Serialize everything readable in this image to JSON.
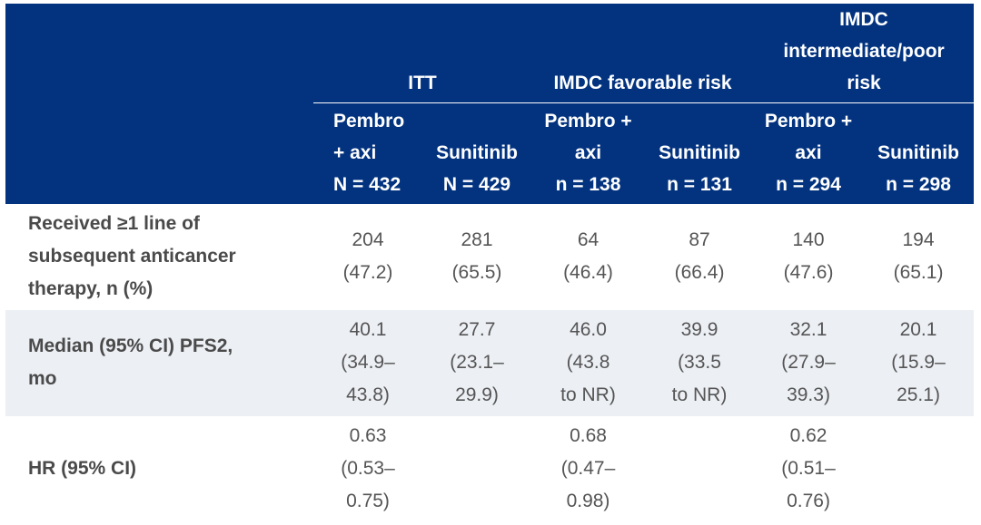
{
  "table": {
    "groups": [
      {
        "label": "ITT"
      },
      {
        "label": "IMDC favorable risk"
      },
      {
        "label": "IMDC\nintermediate/poor\nrisk"
      }
    ],
    "subheaders": [
      "Pembro\n+ axi\nN = 432",
      "Sunitinib\nN = 429",
      "Pembro +\naxi\nn = 138",
      "Sunitinib\nn = 131",
      "Pembro +\naxi\nn = 294",
      "Sunitinib\nn = 298"
    ],
    "rows": [
      {
        "label": "Received ≥1 line of\nsubsequent anticancer\ntherapy, n (%)",
        "cells": [
          "204\n(47.2)",
          "281\n(65.5)",
          "64\n(46.4)",
          "87\n(66.4)",
          "140\n(47.6)",
          "194\n(65.1)"
        ]
      },
      {
        "label": "Median (95% CI) PFS2,\nmo",
        "cells": [
          "40.1\n(34.9–\n43.8)",
          "27.7\n(23.1–\n29.9)",
          "46.0\n(43.8\nto NR)",
          "39.9\n(33.5\nto NR)",
          "32.1\n(27.9–\n39.3)",
          "20.1\n(15.9–\n25.1)"
        ]
      },
      {
        "label": "HR (95% CI)",
        "cells": [
          "0.63\n(0.53–\n0.75)",
          "",
          "0.68\n(0.47–\n0.98)",
          "",
          "0.62\n(0.51–\n0.76)",
          ""
        ]
      }
    ]
  },
  "colors": {
    "header_bg": "#03337f",
    "shade_row": "#eceff4",
    "body_text": "#555555"
  }
}
